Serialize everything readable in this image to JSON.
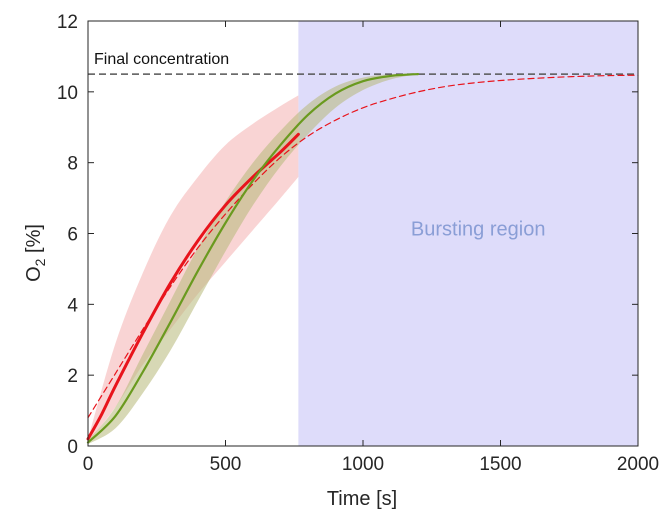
{
  "chart_data": {
    "type": "line",
    "xlabel": "Time [s]",
    "ylabel_main": "O",
    "ylabel_sub": "2",
    "ylabel_unit": " [%]",
    "xlim": [
      0,
      2000
    ],
    "ylim": [
      0,
      12
    ],
    "xticks": [
      0,
      500,
      1000,
      1500,
      2000
    ],
    "yticks": [
      0,
      2,
      4,
      6,
      8,
      10,
      12
    ],
    "grid": false,
    "annotations": {
      "final_concentration_label": "Final concentration",
      "final_concentration_value": 10.5,
      "bursting_region_label": "Bursting region",
      "bursting_region_start": 765,
      "bursting_region_end": 2000
    },
    "colors": {
      "red_series": "#e8141c",
      "green_series": "#6a9a1f",
      "red_band": "#f7c6c6",
      "green_band": "#b6b878",
      "bursting_region": "#dedcfa",
      "bursting_label": "#8a9ed6",
      "final_line": "#555555"
    },
    "series": [
      {
        "style": "solid-red",
        "x": [
          0,
          50,
          100,
          200,
          300,
          400,
          500,
          600,
          700,
          765
        ],
        "y": [
          0.2,
          0.9,
          1.7,
          3.2,
          4.6,
          5.8,
          6.8,
          7.6,
          8.3,
          8.8
        ]
      },
      {
        "style": "dashed-red",
        "x": [
          0,
          100,
          200,
          300,
          400,
          500,
          600,
          700,
          800,
          900,
          1000,
          1100,
          1200,
          1300,
          1400,
          1500,
          1600,
          1700,
          1800,
          1900,
          2000
        ],
        "y": [
          0.8,
          2.05,
          3.3,
          4.5,
          5.6,
          6.55,
          7.4,
          8.15,
          8.75,
          9.2,
          9.55,
          9.8,
          10.0,
          10.15,
          10.25,
          10.32,
          10.37,
          10.41,
          10.44,
          10.46,
          10.47
        ]
      },
      {
        "style": "solid-green",
        "x": [
          0,
          100,
          200,
          300,
          400,
          500,
          600,
          700,
          800,
          900,
          1000,
          1100,
          1150,
          1200
        ],
        "y": [
          0.1,
          0.85,
          2.1,
          3.5,
          4.95,
          6.3,
          7.5,
          8.5,
          9.35,
          9.95,
          10.3,
          10.45,
          10.48,
          10.5
        ]
      }
    ],
    "bands": [
      {
        "style": "red-band",
        "x": [
          0,
          100,
          200,
          300,
          400,
          500,
          600,
          700,
          765
        ],
        "upper": [
          0.2,
          2.9,
          4.9,
          6.5,
          7.6,
          8.5,
          9.1,
          9.6,
          9.9
        ],
        "lower": [
          0.1,
          1.1,
          2.3,
          3.3,
          4.3,
          5.2,
          6.1,
          7.0,
          7.6
        ]
      },
      {
        "style": "green-band",
        "x": [
          0,
          100,
          200,
          300,
          400,
          500,
          600,
          700,
          800,
          900,
          1000,
          1100,
          1200
        ],
        "upper": [
          0.15,
          1.1,
          2.6,
          4.1,
          5.6,
          6.9,
          8.0,
          8.9,
          9.65,
          10.15,
          10.4,
          10.5,
          10.5
        ],
        "lower": [
          0.05,
          0.5,
          1.5,
          2.7,
          4.1,
          5.5,
          6.8,
          7.9,
          8.8,
          9.55,
          10.05,
          10.35,
          10.5
        ]
      }
    ]
  }
}
